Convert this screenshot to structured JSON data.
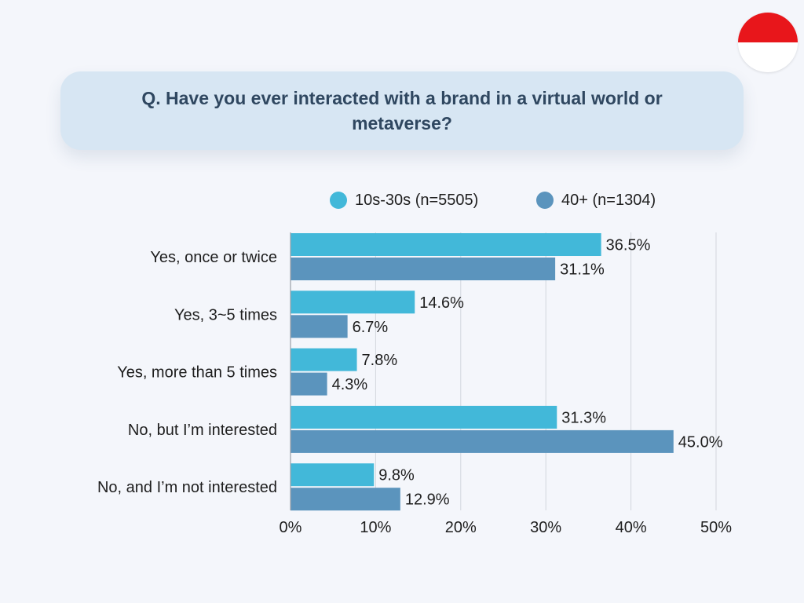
{
  "flag": {
    "colors": [
      "#E8161B",
      "#FFFFFF"
    ]
  },
  "question": {
    "text": "Q. Have you ever interacted with a brand in a virtual world or metaverse?"
  },
  "colors": {
    "background": "#F4F6FB",
    "question_box": "#D7E6F3",
    "question_text": "#2F4760",
    "text": "#1E1E1E",
    "grid": "#D3D7DE",
    "axis": "#9AA0A8"
  },
  "chart_data": {
    "type": "bar",
    "orientation": "horizontal",
    "categories": [
      "Yes, once or twice",
      "Yes, 3~5 times",
      "Yes, more than 5 times",
      "No, but I’m interested",
      "No, and I’m not interested"
    ],
    "series": [
      {
        "name": "10s-30s (n=5505)",
        "color": "#42B8D9",
        "values": [
          36.5,
          14.6,
          7.8,
          31.3,
          9.8
        ],
        "labels": [
          "36.5%",
          "14.6%",
          "7.8%",
          "31.3%",
          "9.8%"
        ]
      },
      {
        "name": "40+ (n=1304)",
        "color": "#5B94BD",
        "values": [
          31.1,
          6.7,
          4.3,
          45.0,
          12.9
        ],
        "labels": [
          "31.1%",
          "6.7%",
          "4.3%",
          "45.0%",
          "12.9%"
        ]
      }
    ],
    "xlim": [
      0,
      50
    ],
    "xticks": [
      0,
      10,
      20,
      30,
      40,
      50
    ],
    "xtick_labels": [
      "0%",
      "10%",
      "20%",
      "30%",
      "40%",
      "50%"
    ],
    "grid": "vertical",
    "legend_position": "top"
  }
}
